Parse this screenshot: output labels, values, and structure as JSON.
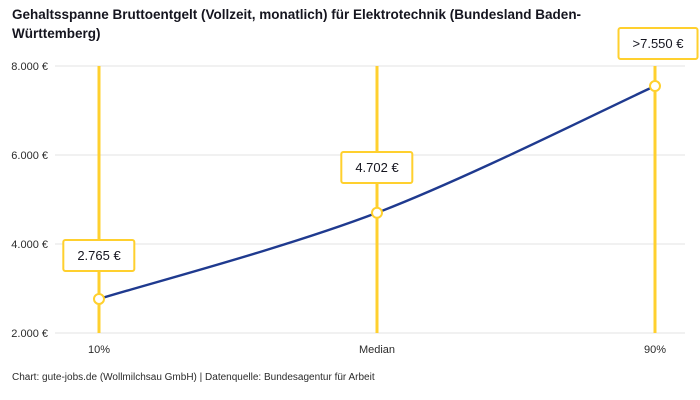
{
  "title": "Gehaltsspanne Bruttoentgelt (Vollzeit, monatlich) für Elektrotechnik (Bundesland Baden-Württemberg)",
  "footer": "Chart: gute-jobs.de (Wollmilchsau GmbH) | Datenquelle: Bundesagentur für Arbeit",
  "chart_data": {
    "type": "line",
    "categories": [
      "10%",
      "Median",
      "90%"
    ],
    "values": [
      2765,
      4702,
      7550
    ],
    "value_labels": [
      "2.765 €",
      "4.702 €",
      ">7.550 €"
    ],
    "series": [
      {
        "name": "Bruttoentgelt",
        "values": [
          2765,
          4702,
          7550
        ]
      }
    ],
    "ylim": [
      2000,
      8000
    ],
    "yticks": [
      2000,
      4000,
      6000,
      8000
    ],
    "ytick_labels": [
      "2.000 €",
      "4.000 €",
      "6.000 €",
      "8.000 €"
    ],
    "grid": true,
    "legend": false,
    "colors": {
      "line": "#1F3A8F",
      "accent": "#FFD02E",
      "grid": "#E3E3E3",
      "tick_text": "#2b2b2b"
    }
  }
}
